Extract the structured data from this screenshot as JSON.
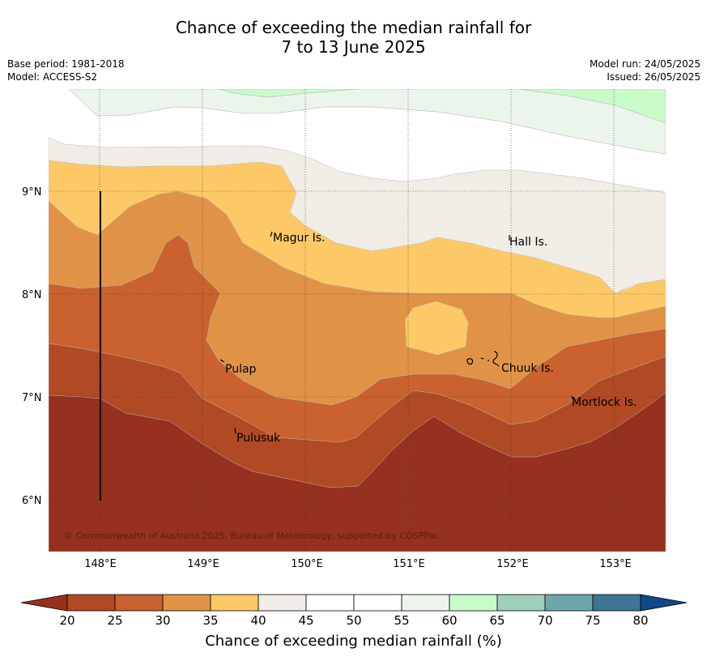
{
  "title_line1": "Chance of exceeding the median rainfall for",
  "title_line2": "7 to 13 June 2025",
  "meta_left": [
    "Base period: 1981-2018",
    "Model: ACCESS-S2"
  ],
  "meta_right": [
    "Model run: 24/05/2025",
    "Issued: 26/05/2025"
  ],
  "copyright": "© Commonwealth of Australia 2025, Bureau of Meteorology, supported by COSPPac",
  "lat_labels": [
    "9°N",
    "8°N",
    "7°N",
    "6°N"
  ],
  "lon_labels": [
    "148°E",
    "149°E",
    "150°E",
    "151°E",
    "152°E",
    "153°E"
  ],
  "places": [
    "Magur Is.",
    "Hall Is.",
    "Pulap",
    "Chuuk Is.",
    "Mortlock Is.",
    "Pulusuk"
  ],
  "colorbar": {
    "title": "Chance of exceeding median rainfall (%)",
    "ticks": [
      "20",
      "25",
      "30",
      "35",
      "40",
      "45",
      "50",
      "55",
      "60",
      "65",
      "70",
      "75",
      "80"
    ],
    "below_color": "#96311f",
    "above_color": "#0d4a87",
    "colors": [
      "#b04a25",
      "#c9622f",
      "#e09347",
      "#fdc966",
      "#f0ece6",
      "#ffffff",
      "#ffffff",
      "#ebf5eb",
      "#c9fbc9",
      "#9dd0b8",
      "#6ea7a9",
      "#3f7495"
    ]
  }
}
